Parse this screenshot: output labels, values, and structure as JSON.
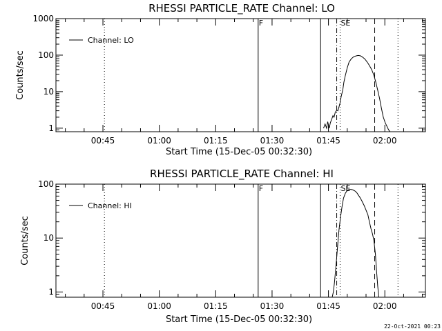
{
  "footer": {
    "timestamp": "22-Oct-2021 00:23"
  },
  "chart_data": [
    {
      "type": "line",
      "title": "RHESSI PARTICLE_RATE Channel: LO",
      "xlabel": "Start Time (15-Dec-05 00:32:30)",
      "ylabel": "Counts/sec",
      "x_unit": "minutes after 00:32:30 UT",
      "xlim": [
        0,
        98.3
      ],
      "ylim": [
        0.8,
        1000
      ],
      "yscale": "log",
      "x_ticks": [
        {
          "x": 12.5,
          "label": "00:45"
        },
        {
          "x": 27.5,
          "label": "01:00"
        },
        {
          "x": 42.5,
          "label": "01:15"
        },
        {
          "x": 57.5,
          "label": "01:30"
        },
        {
          "x": 72.5,
          "label": "01:45"
        },
        {
          "x": 87.5,
          "label": "02:00"
        }
      ],
      "y_ticks": [
        {
          "y": 1,
          "label": "1"
        },
        {
          "y": 10,
          "label": "10"
        },
        {
          "y": 100,
          "label": "100"
        },
        {
          "y": 1000,
          "label": "1000"
        }
      ],
      "legend": {
        "position": "top-left",
        "entries": [
          "Channel: LO"
        ]
      },
      "series": [
        {
          "name": "Channel: LO",
          "x": [
            71.2,
            71.6,
            72.0,
            72.3,
            72.7,
            73.0,
            73.4,
            73.7,
            74.0,
            74.3,
            74.7,
            75.0,
            75.3,
            75.6,
            75.9,
            76.3,
            76.6,
            77.0,
            77.5,
            78.0,
            78.6,
            79.2,
            79.8,
            80.4,
            81.0,
            81.6,
            82.2,
            82.8,
            83.4,
            84.0,
            84.6,
            85.1,
            85.6,
            86.1,
            86.6,
            87.1,
            87.6,
            88.1,
            88.5,
            88.9
          ],
          "y": [
            1.0,
            1.3,
            1.0,
            1.5,
            1.0,
            1.4,
            1.8,
            2.2,
            2.0,
            2.7,
            3.1,
            3.0,
            3.8,
            5.0,
            7.5,
            11.0,
            18.0,
            28.0,
            45.0,
            65.0,
            80.0,
            90.0,
            95.0,
            98.0,
            96.0,
            88.0,
            78.0,
            65.0,
            52.0,
            40.0,
            28.0,
            18.0,
            11.0,
            6.5,
            3.5,
            2.0,
            1.4,
            1.1,
            0.9,
            0.8
          ]
        }
      ],
      "event_markers": [
        {
          "x": 12.9,
          "style": "dotted"
        },
        {
          "x": 53.8,
          "style": "solid",
          "label": "F"
        },
        {
          "x": 70.4,
          "style": "solid"
        },
        {
          "x": 74.7,
          "style": "dash-dot"
        },
        {
          "x": 75.6,
          "style": "dotted",
          "label": "SE"
        },
        {
          "x": 84.8,
          "style": "dashed"
        },
        {
          "x": 91.0,
          "style": "dotted"
        }
      ]
    },
    {
      "type": "line",
      "title": "RHESSI PARTICLE_RATE Channel: HI",
      "xlabel": "Start Time (15-Dec-05 00:32:30)",
      "ylabel": "Counts/sec",
      "x_unit": "minutes after 00:32:30 UT",
      "xlim": [
        0,
        98.3
      ],
      "ylim": [
        0.8,
        100
      ],
      "yscale": "log",
      "x_ticks": [
        {
          "x": 12.5,
          "label": "00:45"
        },
        {
          "x": 27.5,
          "label": "01:00"
        },
        {
          "x": 42.5,
          "label": "01:15"
        },
        {
          "x": 57.5,
          "label": "01:30"
        },
        {
          "x": 72.5,
          "label": "01:45"
        },
        {
          "x": 87.5,
          "label": "02:00"
        }
      ],
      "y_ticks": [
        {
          "y": 1,
          "label": "1"
        },
        {
          "y": 10,
          "label": "10"
        },
        {
          "y": 100,
          "label": "100"
        }
      ],
      "legend": {
        "position": "top-left",
        "entries": [
          "Channel: HI"
        ]
      },
      "series": [
        {
          "name": "Channel: HI",
          "x": [
            73.5,
            73.8,
            74.1,
            74.4,
            74.7,
            75.0,
            75.3,
            75.7,
            76.1,
            76.5,
            77.0,
            77.5,
            78.0,
            78.5,
            79.0,
            79.5,
            80.0,
            80.5,
            81.0,
            81.5,
            82.0,
            82.5,
            83.0,
            83.4,
            83.8,
            84.2,
            84.6,
            85.0,
            85.3,
            85.6,
            85.9
          ],
          "y": [
            0.8,
            1.0,
            1.5,
            2.5,
            4.5,
            8.0,
            14.0,
            24.0,
            38.0,
            55.0,
            68.0,
            76.0,
            80.0,
            80.0,
            78.0,
            75.0,
            70.0,
            62.0,
            55.0,
            47.0,
            40.0,
            33.0,
            27.0,
            20.0,
            15.0,
            12.0,
            9.0,
            5.0,
            2.5,
            1.3,
            0.8
          ]
        }
      ],
      "event_markers": [
        {
          "x": 12.9,
          "style": "dotted"
        },
        {
          "x": 53.8,
          "style": "solid",
          "label": "F"
        },
        {
          "x": 70.4,
          "style": "solid"
        },
        {
          "x": 74.7,
          "style": "dash-dot"
        },
        {
          "x": 75.6,
          "style": "dotted",
          "label": "SE"
        },
        {
          "x": 84.8,
          "style": "dashed"
        },
        {
          "x": 91.0,
          "style": "dotted"
        }
      ]
    }
  ]
}
